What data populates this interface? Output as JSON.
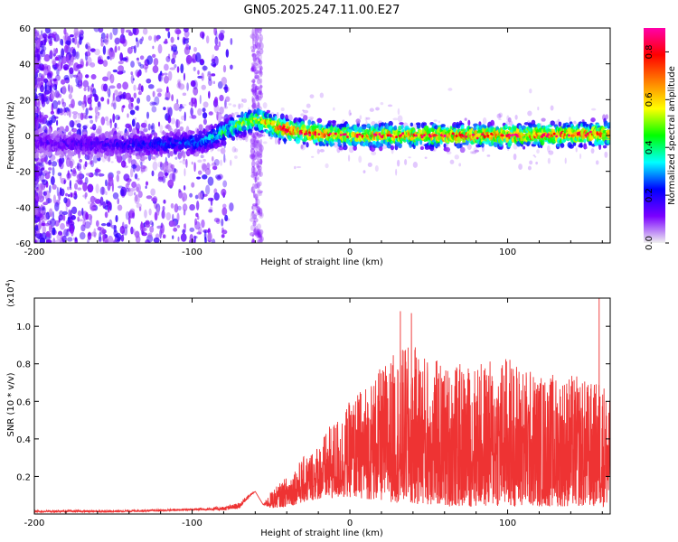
{
  "title": "GN05.2025.247.11.00.E27",
  "chart_data": [
    {
      "type": "heatmap",
      "name": "spectrogram",
      "xlabel": "Height of straight line (km)",
      "ylabel": "Frequency (Hz)",
      "xlim": [
        -200,
        165
      ],
      "ylim": [
        -60,
        60
      ],
      "xticks": [
        -200,
        -100,
        0,
        100
      ],
      "yticks": [
        -60,
        -40,
        -20,
        0,
        20,
        40,
        60
      ],
      "colorbar": {
        "label": "Normalized spectral amplitude",
        "range": [
          0,
          0.9
        ],
        "ticks": [
          "0.0",
          "0.2",
          "0.4",
          "0.6",
          "0.8"
        ],
        "tick_values": [
          0,
          0.2,
          0.4,
          0.6,
          0.8
        ],
        "colors": [
          "#f0f0f0",
          "#7a00ff",
          "#0000ff",
          "#00ffff",
          "#00ff00",
          "#ffff00",
          "#ff8000",
          "#ff0000",
          "#ff00aa"
        ]
      },
      "ridge": {
        "x": [
          -200,
          -150,
          -120,
          -100,
          -90,
          -80,
          -70,
          -60,
          -55,
          -50,
          -40,
          -30,
          -20,
          0,
          50,
          100,
          165
        ],
        "freq": [
          -4,
          -5,
          -5,
          -4,
          -2,
          2,
          6,
          9,
          8,
          6,
          3,
          2,
          1,
          0,
          0,
          0,
          1
        ],
        "amplitude": [
          0.15,
          0.2,
          0.25,
          0.3,
          0.35,
          0.45,
          0.55,
          0.6,
          0.65,
          0.75,
          0.85,
          0.8,
          0.75,
          0.7,
          0.75,
          0.8,
          0.75
        ]
      },
      "noise_band_x": [
        -62,
        -56
      ]
    },
    {
      "type": "line",
      "name": "snr",
      "xlabel": "Height of straight line (km)",
      "ylabel": "SNR (10 * v/v)",
      "scale_label": "(x10",
      "scale_exp": "4",
      "scale_close": ")",
      "xlim": [
        -200,
        165
      ],
      "ylim": [
        0,
        1.15
      ],
      "xticks": [
        -200,
        -100,
        0,
        100
      ],
      "yticks": [
        "0.2",
        "0.4",
        "0.6",
        "0.8",
        "1.0"
      ],
      "ytick_values": [
        0.2,
        0.4,
        0.6,
        0.8,
        1.0
      ],
      "color": "#ee3333",
      "envelope": {
        "x": [
          -200,
          -150,
          -120,
          -100,
          -80,
          -70,
          -65,
          -60,
          -55,
          -50,
          -40,
          -30,
          -20,
          -10,
          0,
          10,
          20,
          30,
          40,
          50,
          60,
          80,
          100,
          120,
          140,
          155,
          160,
          165
        ],
        "baseline": [
          0.01,
          0.01,
          0.015,
          0.02,
          0.02,
          0.03,
          0.08,
          0.12,
          0.05,
          0.03,
          0.04,
          0.06,
          0.08,
          0.08,
          0.09,
          0.08,
          0.07,
          0.06,
          0.05,
          0.05,
          0.04,
          0.04,
          0.04,
          0.04,
          0.04,
          0.04,
          0.04,
          0.04
        ],
        "amplitude": [
          0.02,
          0.02,
          0.025,
          0.03,
          0.04,
          0.06,
          0.1,
          0.12,
          0.05,
          0.12,
          0.2,
          0.3,
          0.38,
          0.5,
          0.6,
          0.7,
          0.78,
          0.88,
          0.9,
          0.85,
          0.8,
          0.8,
          0.85,
          0.75,
          0.75,
          0.7,
          0.75,
          0.6
        ]
      },
      "peaks": [
        {
          "x": 32,
          "y": 1.08
        },
        {
          "x": 39,
          "y": 1.07
        },
        {
          "x": 158,
          "y": 1.15
        }
      ]
    }
  ]
}
